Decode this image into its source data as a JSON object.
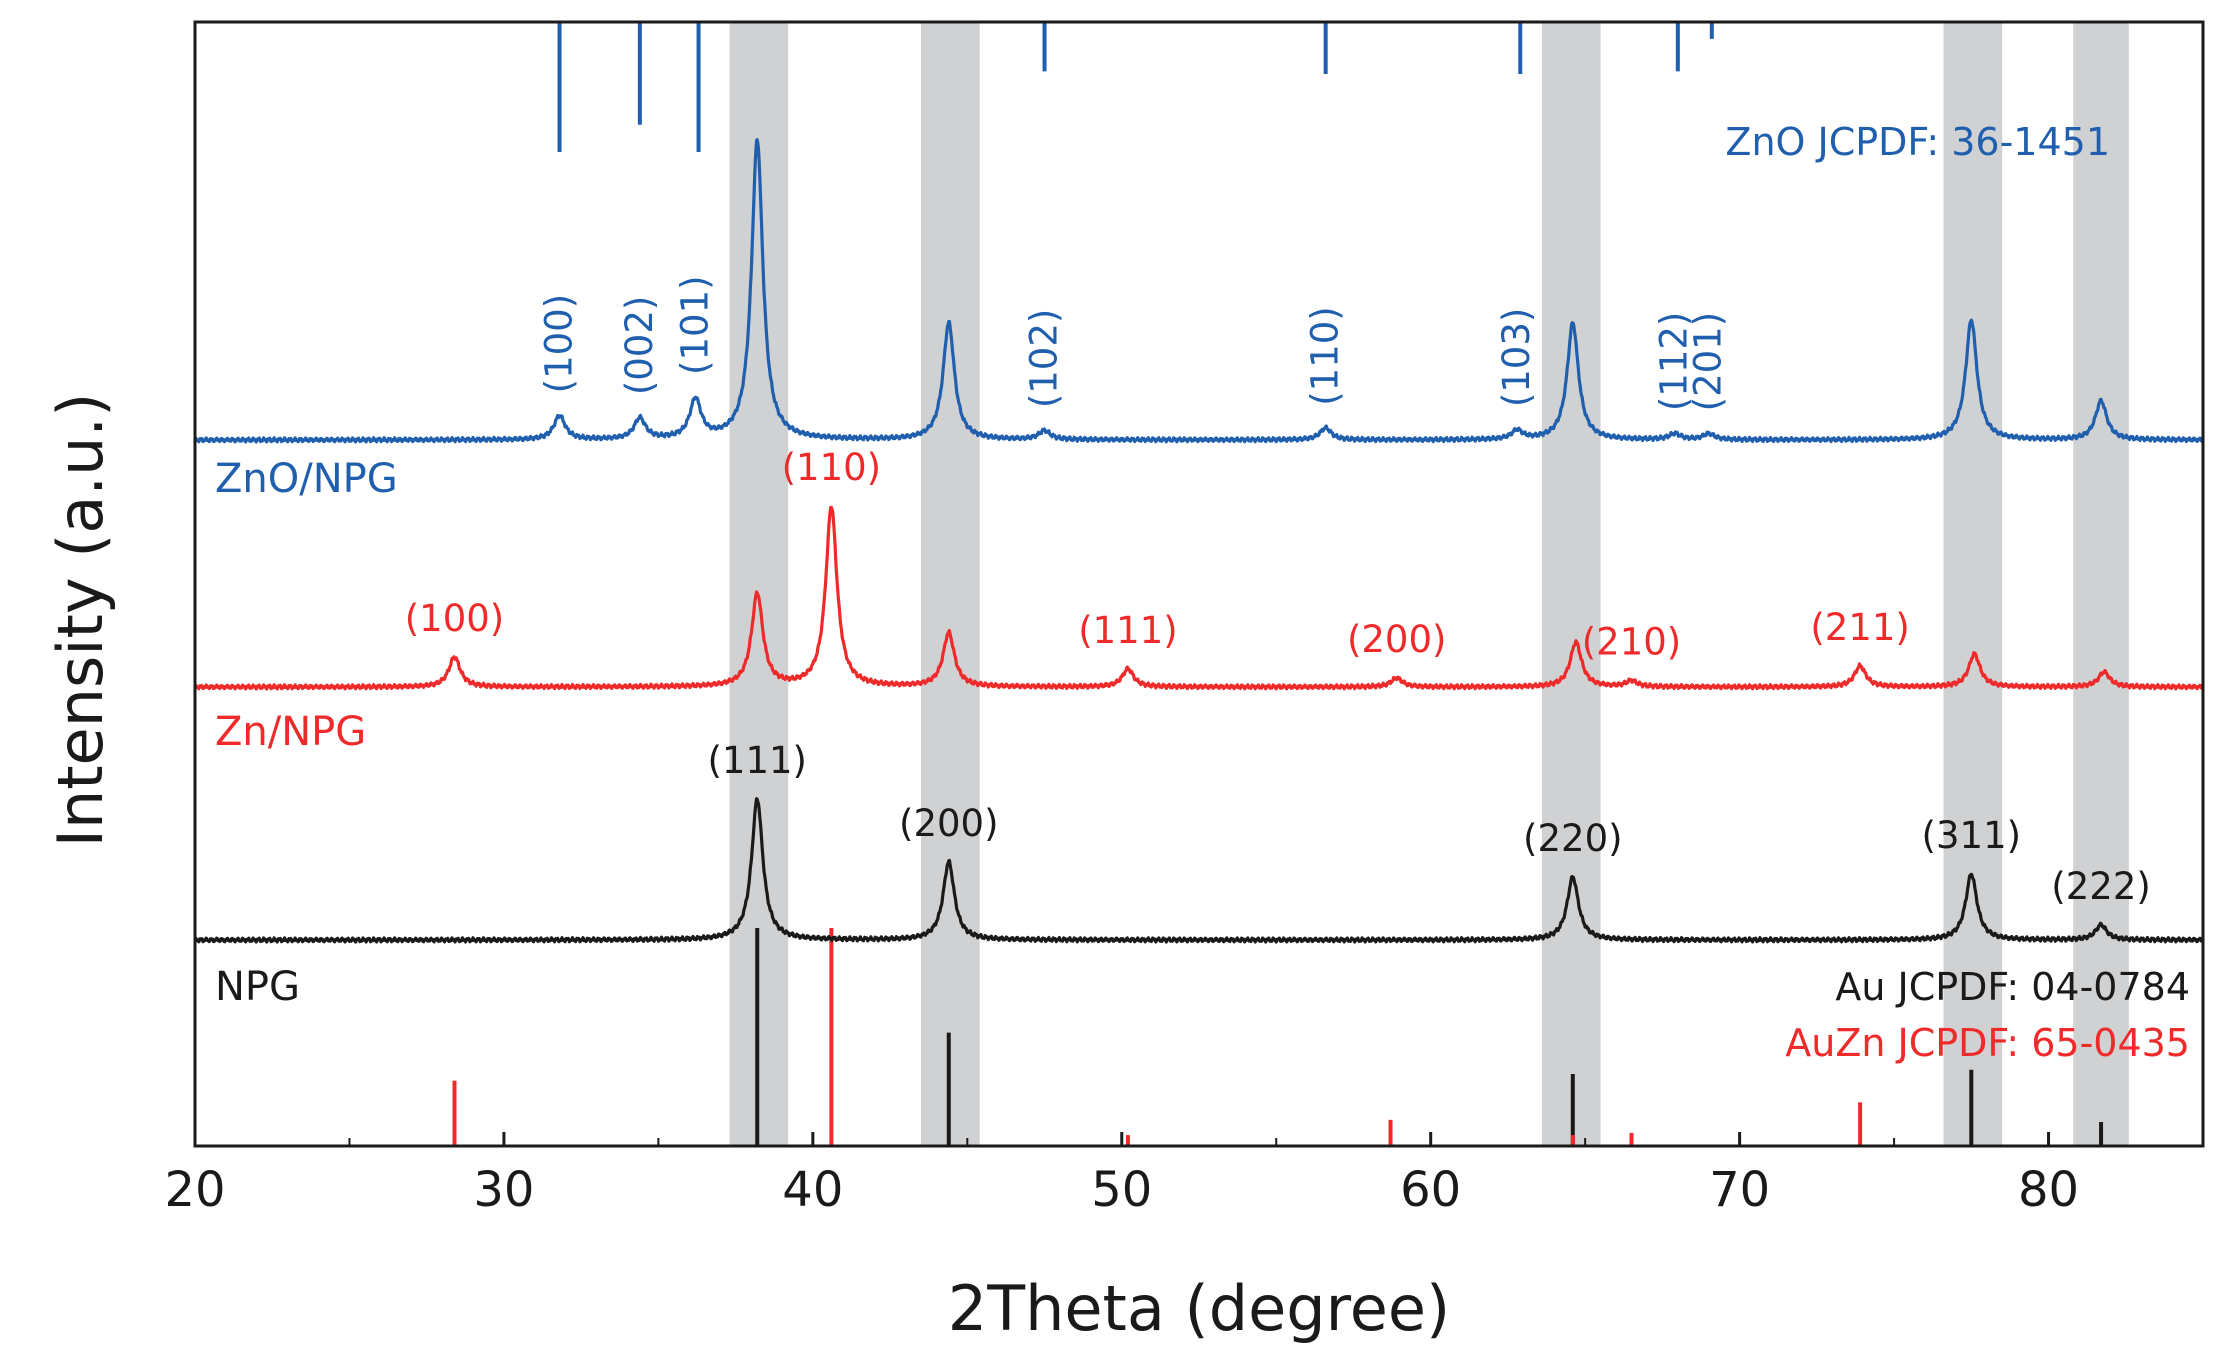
{
  "chart_data": {
    "type": "line",
    "xlabel": "2Theta (degree)",
    "ylabel": "Intensity (a.u.)",
    "xlim": [
      20,
      85
    ],
    "x_ticks": [
      "20",
      "30",
      "40",
      "50",
      "60",
      "70",
      "80"
    ],
    "highlight_bands": [
      [
        37.3,
        39.2
      ],
      [
        43.5,
        45.4
      ],
      [
        63.6,
        65.5
      ],
      [
        76.6,
        78.5
      ],
      [
        80.8,
        82.6
      ]
    ],
    "colors": {
      "ZnO/NPG": "#1f5fad",
      "Zn/NPG": "#ee2a2a",
      "NPG": "#1a1a1a",
      "band": "#c8c9cb"
    },
    "series": [
      {
        "name": "ZnO/NPG",
        "color": "#1f5fad",
        "peaks": [
          {
            "x": 31.8,
            "h": 0.08
          },
          {
            "x": 34.4,
            "h": 0.07
          },
          {
            "x": 36.2,
            "h": 0.13
          },
          {
            "x": 38.2,
            "h": 1.0
          },
          {
            "x": 44.4,
            "h": 0.39
          },
          {
            "x": 47.5,
            "h": 0.03
          },
          {
            "x": 56.6,
            "h": 0.04
          },
          {
            "x": 62.8,
            "h": 0.03
          },
          {
            "x": 64.6,
            "h": 0.39
          },
          {
            "x": 67.9,
            "h": 0.02
          },
          {
            "x": 69.0,
            "h": 0.02
          },
          {
            "x": 77.5,
            "h": 0.4
          },
          {
            "x": 81.7,
            "h": 0.13
          }
        ],
        "annotations": [
          {
            "x": 31.8,
            "text": "(100)"
          },
          {
            "x": 34.4,
            "text": "(002)"
          },
          {
            "x": 36.2,
            "text": "(101)"
          },
          {
            "x": 47.5,
            "text": "(102)"
          },
          {
            "x": 56.6,
            "text": "(110)"
          },
          {
            "x": 62.8,
            "text": "(103)"
          },
          {
            "x": 67.9,
            "text": "(112)"
          },
          {
            "x": 69.0,
            "text": "(201)"
          }
        ]
      },
      {
        "name": "Zn/NPG",
        "color": "#ee2a2a",
        "peaks": [
          {
            "x": 28.4,
            "h": 0.1
          },
          {
            "x": 38.2,
            "h": 0.31
          },
          {
            "x": 40.6,
            "h": 0.6
          },
          {
            "x": 44.4,
            "h": 0.18
          },
          {
            "x": 50.2,
            "h": 0.06
          },
          {
            "x": 58.9,
            "h": 0.03
          },
          {
            "x": 64.7,
            "h": 0.15
          },
          {
            "x": 66.5,
            "h": 0.02
          },
          {
            "x": 73.9,
            "h": 0.07
          },
          {
            "x": 77.6,
            "h": 0.11
          },
          {
            "x": 81.8,
            "h": 0.05
          }
        ],
        "annotations": [
          {
            "x": 28.4,
            "text": "(100)"
          },
          {
            "x": 40.6,
            "text": "(110)"
          },
          {
            "x": 50.2,
            "text": "(111)"
          },
          {
            "x": 58.9,
            "text": "(200)"
          },
          {
            "x": 66.5,
            "text": "(210)"
          },
          {
            "x": 73.9,
            "text": "(211)"
          }
        ]
      },
      {
        "name": "NPG",
        "color": "#1a1a1a",
        "peaks": [
          {
            "x": 38.2,
            "h": 0.47
          },
          {
            "x": 44.4,
            "h": 0.26
          },
          {
            "x": 64.6,
            "h": 0.21
          },
          {
            "x": 77.5,
            "h": 0.22
          },
          {
            "x": 81.7,
            "h": 0.05
          }
        ],
        "annotations": [
          {
            "x": 38.2,
            "text": "(111)"
          },
          {
            "x": 44.4,
            "text": "(200)"
          },
          {
            "x": 64.6,
            "text": "(220)"
          },
          {
            "x": 77.5,
            "text": "(311)"
          },
          {
            "x": 81.7,
            "text": "(222)"
          }
        ]
      }
    ],
    "reference_patterns": [
      {
        "label": "ZnO JCPDF: 36-1451",
        "color": "#1f5fad",
        "lines": [
          {
            "x": 31.8,
            "h": 1.0
          },
          {
            "x": 34.4,
            "h": 0.79
          },
          {
            "x": 36.3,
            "h": 1.0
          },
          {
            "x": 47.5,
            "h": 0.38
          },
          {
            "x": 56.6,
            "h": 0.4
          },
          {
            "x": 62.9,
            "h": 0.4
          },
          {
            "x": 68.0,
            "h": 0.38
          },
          {
            "x": 69.1,
            "h": 0.13
          }
        ]
      },
      {
        "label": "Au JCPDF: 04-0784",
        "color": "#1a1a1a",
        "lines": [
          {
            "x": 38.2,
            "h": 1.0
          },
          {
            "x": 44.4,
            "h": 0.52
          },
          {
            "x": 64.6,
            "h": 0.33
          },
          {
            "x": 77.5,
            "h": 0.35
          },
          {
            "x": 81.7,
            "h": 0.11
          }
        ]
      },
      {
        "label": "AuZn JCPDF: 65-0435",
        "color": "#ee2a2a",
        "lines": [
          {
            "x": 28.4,
            "h": 0.3
          },
          {
            "x": 40.6,
            "h": 1.0
          },
          {
            "x": 50.2,
            "h": 0.05
          },
          {
            "x": 58.7,
            "h": 0.12
          },
          {
            "x": 64.6,
            "h": 0.05
          },
          {
            "x": 66.5,
            "h": 0.06
          },
          {
            "x": 73.9,
            "h": 0.2
          }
        ]
      }
    ]
  }
}
